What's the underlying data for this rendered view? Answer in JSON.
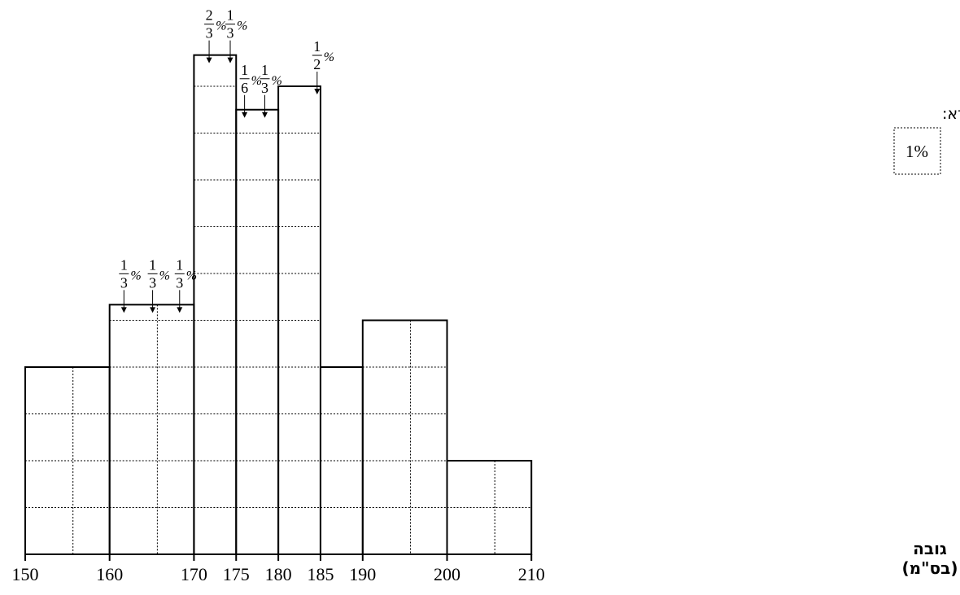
{
  "chart_data": {
    "type": "histogram",
    "xlabel_line1": "גובה",
    "xlabel_line2": "(בס\"מ)",
    "x_ticks": [
      150,
      160,
      170,
      175,
      180,
      185,
      190,
      200,
      210
    ],
    "bins": [
      {
        "from": 150,
        "to": 160,
        "value": 4
      },
      {
        "from": 160,
        "to": 170,
        "value": 5.3333
      },
      {
        "from": 170,
        "to": 175,
        "value": 10.6667
      },
      {
        "from": 175,
        "to": 180,
        "value": 9.5
      },
      {
        "from": 180,
        "to": 185,
        "value": 10
      },
      {
        "from": 185,
        "to": 190,
        "value": 4
      },
      {
        "from": 190,
        "to": 200,
        "value": 5
      },
      {
        "from": 200,
        "to": 210,
        "value": 2
      }
    ],
    "annotations": [
      {
        "x": 161.7,
        "num": "1",
        "den": "3",
        "unit": "%",
        "target": 5.3333
      },
      {
        "x": 165.1,
        "num": "1",
        "den": "3",
        "unit": "%",
        "target": 5.3333
      },
      {
        "x": 168.3,
        "num": "1",
        "den": "3",
        "unit": "%",
        "target": 5.3333
      },
      {
        "x": 171.8,
        "num": "2",
        "den": "3",
        "unit": "%",
        "target": 10.6667
      },
      {
        "x": 174.3,
        "num": "1",
        "den": "3",
        "unit": "%",
        "target": 10.6667
      },
      {
        "x": 176.0,
        "num": "1",
        "den": "6",
        "unit": "%",
        "target": 9.5
      },
      {
        "x": 178.4,
        "num": "1",
        "den": "3",
        "unit": "%",
        "target": 9.5
      },
      {
        "x": 184.6,
        "num": "1",
        "den": "2",
        "unit": "%",
        "target": 10
      }
    ],
    "legend": {
      "title": "מקרא:",
      "cell_label": "1%"
    }
  }
}
